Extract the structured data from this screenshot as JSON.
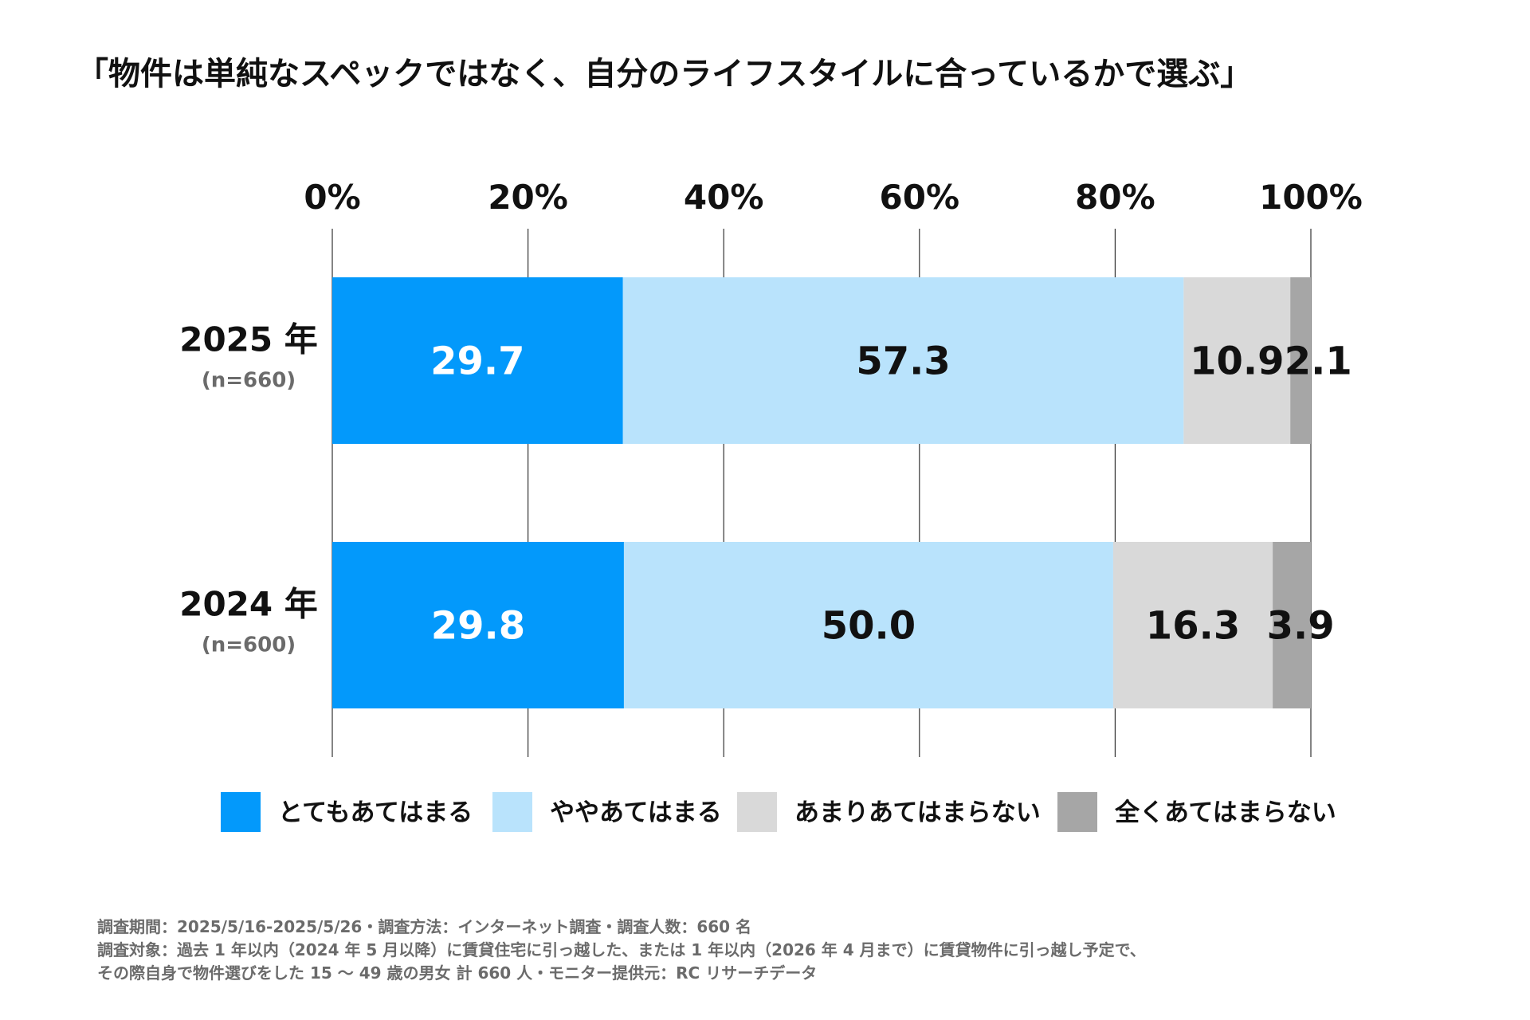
{
  "title": "「物件は単純なスペックではなく、自分のライフスタイルに合っているかで選ぶ」",
  "chart_data": {
    "type": "bar",
    "orientation": "horizontal-stacked-100",
    "x_ticks": [
      "0%",
      "20%",
      "40%",
      "60%",
      "80%",
      "100%"
    ],
    "xlim": [
      0,
      100
    ],
    "grid": true,
    "legend_position": "bottom",
    "categories": [
      {
        "label": "2025 年",
        "n": "(n=660)"
      },
      {
        "label": "2024 年",
        "n": "(n=600)"
      }
    ],
    "series": [
      {
        "name": "とてもあてはまる",
        "color": "#0399fb",
        "label_color": "#ffffff",
        "values": [
          29.7,
          29.8
        ],
        "labels": [
          "29.7",
          "29.8"
        ]
      },
      {
        "name": "ややあてはまる",
        "color": "#b9e3fc",
        "label_color": "#111111",
        "values": [
          57.3,
          50.0
        ],
        "labels": [
          "57.3",
          "50.0"
        ]
      },
      {
        "name": "あまりあてはまらない",
        "color": "#d9d9d9",
        "label_color": "#111111",
        "values": [
          10.9,
          16.3
        ],
        "labels": [
          "10.9",
          "16.3"
        ]
      },
      {
        "name": "全くあてはまらない",
        "color": "#a6a6a6",
        "label_color": "#111111",
        "values": [
          2.1,
          3.9
        ],
        "labels": [
          "2.1",
          "3.9"
        ]
      }
    ]
  },
  "footnote": [
    "調査期間：2025/5/16-2025/5/26・調査方法：インターネット調査・調査人数：660 名",
    "調査対象：過去 1 年以内（2024 年 5 月以降）に賃貸住宅に引っ越した、または 1 年以内（2026 年 4 月まで）に賃貸物件に引っ越し予定で、",
    "その際自身で物件選びをした 15 ～ 49 歳の男女 計 660 人・モニター提供元：RC リサーチデータ"
  ]
}
